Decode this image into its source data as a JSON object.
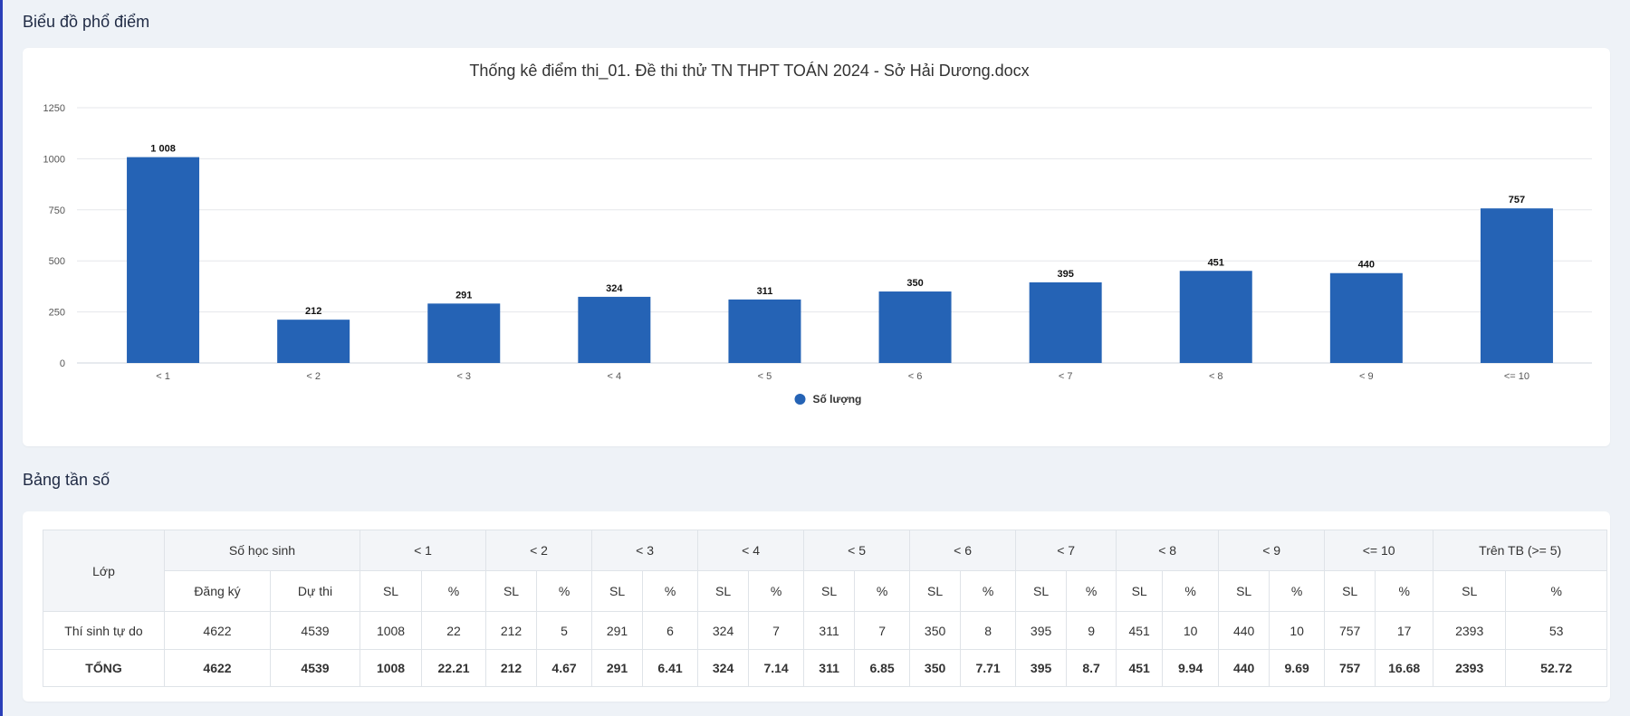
{
  "sections": {
    "chart_title": "Biểu đồ phổ điểm",
    "table_title": "Bảng tần số"
  },
  "colors": {
    "bar": "#2563b5",
    "grid": "#e5e7eb"
  },
  "chart_data": {
    "type": "bar",
    "title": "Thống kê điểm thi_01. Đề thi thử TN THPT TOÁN 2024 - Sở Hải Dương.docx",
    "categories": [
      "< 1",
      "< 2",
      "< 3",
      "< 4",
      "< 5",
      "< 6",
      "< 7",
      "< 8",
      "< 9",
      "<= 10"
    ],
    "series": [
      {
        "name": "Số lượng",
        "values": [
          1008,
          212,
          291,
          324,
          311,
          350,
          395,
          451,
          440,
          757
        ]
      }
    ],
    "value_labels": [
      "1 008",
      "212",
      "291",
      "324",
      "311",
      "350",
      "395",
      "451",
      "440",
      "757"
    ],
    "ylim": [
      0,
      1250
    ],
    "yticks": [
      "0",
      "250",
      "500",
      "750",
      "1000",
      "1250"
    ],
    "xlabel": "",
    "ylabel": "",
    "grid": true,
    "legend": "bottom-center"
  },
  "table": {
    "header1": [
      "Lớp",
      "Số học sinh",
      "< 1",
      "< 2",
      "< 3",
      "< 4",
      "< 5",
      "< 6",
      "< 7",
      "< 8",
      "< 9",
      "<= 10",
      "Trên TB (>= 5)"
    ],
    "header2": [
      "Đăng ký",
      "Dự thi",
      "SL",
      "%",
      "SL",
      "%",
      "SL",
      "%",
      "SL",
      "%",
      "SL",
      "%",
      "SL",
      "%",
      "SL",
      "%",
      "SL",
      "%",
      "SL",
      "%",
      "SL",
      "%",
      "SL",
      "%"
    ],
    "rows": [
      [
        "Thí sinh tự do",
        "4622",
        "4539",
        "1008",
        "22",
        "212",
        "5",
        "291",
        "6",
        "324",
        "7",
        "311",
        "7",
        "350",
        "8",
        "395",
        "9",
        "451",
        "10",
        "440",
        "10",
        "757",
        "17",
        "2393",
        "53"
      ],
      [
        "TỔNG",
        "4622",
        "4539",
        "1008",
        "22.21",
        "212",
        "4.67",
        "291",
        "6.41",
        "324",
        "7.14",
        "311",
        "6.85",
        "350",
        "7.71",
        "395",
        "8.7",
        "451",
        "9.94",
        "440",
        "9.69",
        "757",
        "16.68",
        "2393",
        "52.72"
      ]
    ]
  }
}
